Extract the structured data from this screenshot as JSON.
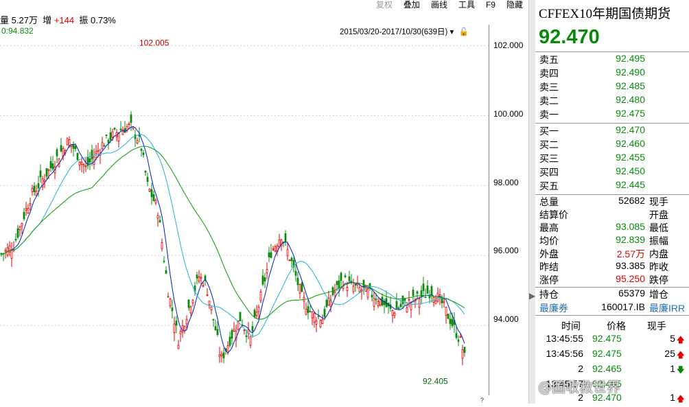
{
  "stats": {
    "volume_label": "量",
    "volume": "5.27万",
    "inc_label": "增",
    "inc": "+144",
    "amp_label": "振",
    "amp": "0.73%"
  },
  "toolbar": [
    "复权",
    "叠加",
    "画线",
    "工具",
    "F9",
    "隐藏"
  ],
  "ma_label": "0:94.832",
  "range_label": "2015/03/20-2017/10/30(639日)",
  "y_ticks": [
    "102.000",
    "100.000",
    "98.000",
    "96.000",
    "94.000"
  ],
  "annotations": {
    "high": "102.005",
    "low": "92.405"
  },
  "panel": {
    "title": "CFFEX10年期国债期货",
    "price": "92.470",
    "asks": [
      {
        "label": "卖五",
        "value": "92.495"
      },
      {
        "label": "卖四",
        "value": "92.490"
      },
      {
        "label": "卖三",
        "value": "92.485"
      },
      {
        "label": "卖二",
        "value": "92.480"
      },
      {
        "label": "卖一",
        "value": "92.475"
      }
    ],
    "bids": [
      {
        "label": "买一",
        "value": "92.470"
      },
      {
        "label": "买二",
        "value": "92.460"
      },
      {
        "label": "买三",
        "value": "92.455"
      },
      {
        "label": "买四",
        "value": "92.450"
      },
      {
        "label": "买五",
        "value": "92.445"
      }
    ],
    "stats": [
      {
        "label": "总量",
        "value": "52682",
        "label2": "现手",
        "color": ""
      },
      {
        "label": "结算价",
        "value": "",
        "label2": "开盘",
        "color": ""
      },
      {
        "label": "最高",
        "value": "93.085",
        "label2": "最低",
        "color": "green"
      },
      {
        "label": "均价",
        "value": "92.839",
        "label2": "振幅",
        "color": "green"
      },
      {
        "label": "外盘",
        "value": "2.57万",
        "label2": "内盘",
        "color": "red"
      },
      {
        "label": "昨结",
        "value": "93.385",
        "label2": "昨收",
        "color": ""
      },
      {
        "label": "涨停",
        "value": "95.250",
        "label2": "跌停",
        "color": "red"
      }
    ],
    "holding": {
      "label": "持仓",
      "value": "65379",
      "label2": "增仓"
    },
    "cheapest": {
      "label": "最廉券",
      "value": "160017.IB",
      "label2": "最廉IRR"
    },
    "ticks_header": {
      "time": "时间",
      "price": "价格",
      "qty": "现手"
    },
    "ticks": [
      {
        "time": "13:45:55",
        "price": "92.475",
        "qty": "5",
        "dir": "up"
      },
      {
        "time": "13:45:56",
        "price": "92.475",
        "qty": "25",
        "dir": "up"
      },
      {
        "time": "2",
        "price": "92.465",
        "qty": "1",
        "dir": "down"
      },
      {
        "time": "13:45:57",
        "price": "92.465",
        "qty": "",
        "dir": ""
      },
      {
        "time": "2",
        "price": "92.470",
        "qty": "1",
        "dir": "up"
      }
    ]
  },
  "watermark": "@固收救世界",
  "colors": {
    "up": "#e00000",
    "down": "#0a8a0a",
    "ma_blue": "#1030c0",
    "ma_cyan": "#30b8d8",
    "ma_green": "#18a018"
  }
}
